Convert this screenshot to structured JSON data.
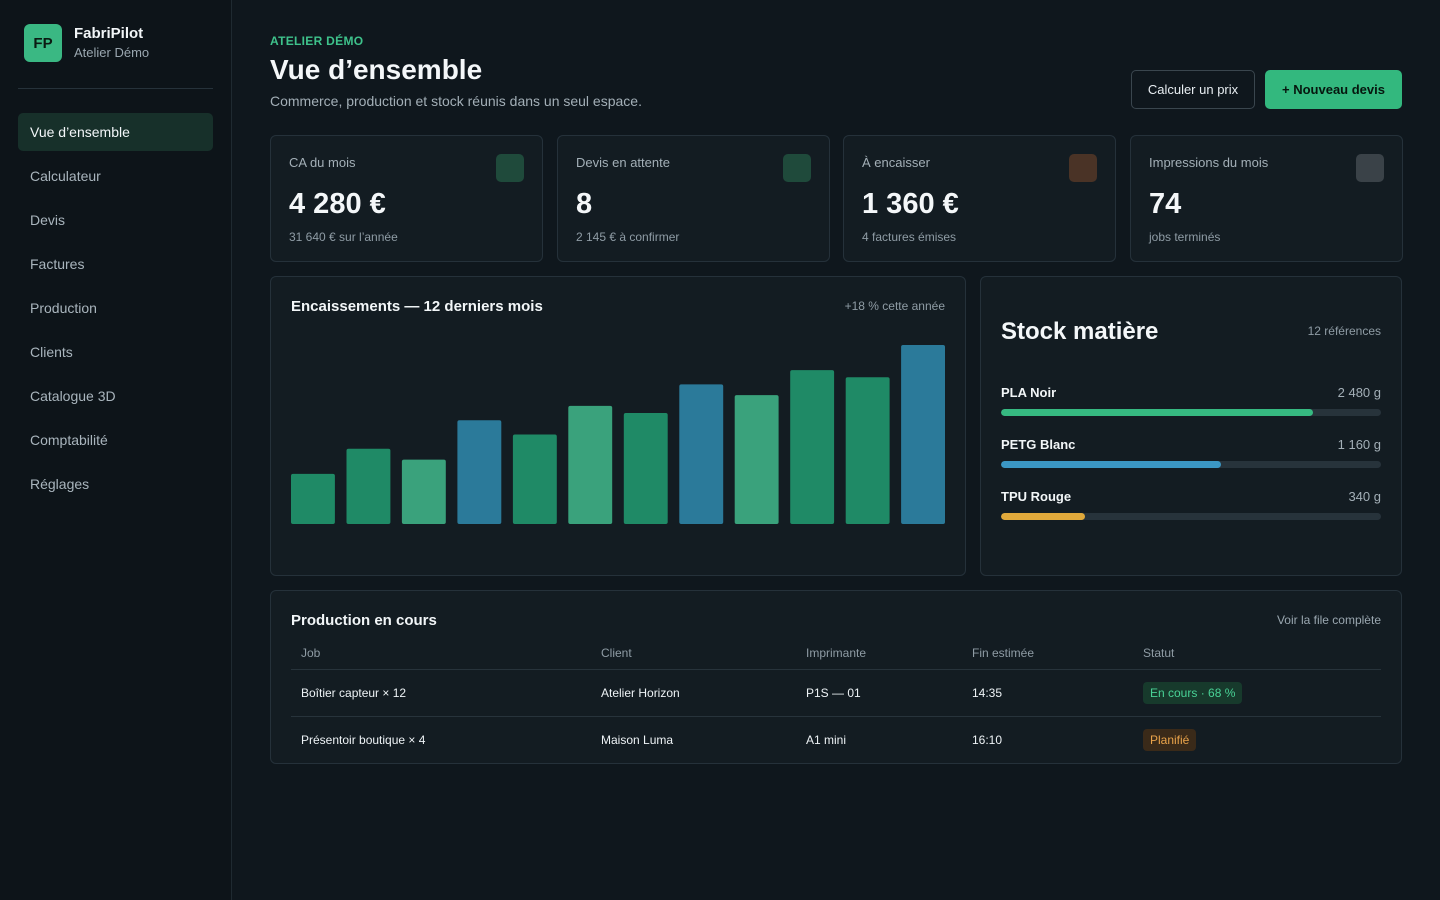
{
  "sidebar": {
    "logo": "FP",
    "app_name": "FabriPilot",
    "workspace": "Atelier Démo",
    "items": [
      {
        "label": "Vue d’ensemble",
        "active": true
      },
      {
        "label": "Calculateur"
      },
      {
        "label": "Devis"
      },
      {
        "label": "Factures"
      },
      {
        "label": "Production"
      },
      {
        "label": "Clients"
      },
      {
        "label": "Catalogue 3D"
      },
      {
        "label": "Comptabilité"
      },
      {
        "label": "Réglages"
      }
    ]
  },
  "header": {
    "eyebrow": "ATELIER DÉMO",
    "title": "Vue d’ensemble",
    "subtitle": "Commerce, production et stock réunis dans un seul espace.",
    "btn_price": "Calculer un prix",
    "btn_quote": "+ Nouveau devis"
  },
  "kpis": [
    {
      "label": "CA du mois",
      "value": "4 280 €",
      "sub": "31 640 € sur l’année",
      "icon_color": "#1f4a3b"
    },
    {
      "label": "Devis en attente",
      "value": "8",
      "sub": "2 145 € à confirmer",
      "icon_color": "#1f4a3b"
    },
    {
      "label": "À encaisser",
      "value": "1 360 €",
      "sub": "4 factures émises",
      "icon_color": "#4a3326"
    },
    {
      "label": "Impressions du mois",
      "value": "74",
      "sub": "jobs terminés",
      "icon_color": "#3a4248"
    }
  ],
  "chart": {
    "title": "Encaissements — 12 derniers mois",
    "note": "+18 % cette année"
  },
  "chart_data": {
    "type": "bar",
    "title": "Encaissements — 12 derniers mois",
    "categories": [
      "",
      "",
      "",
      "",
      "",
      "",
      "",
      "",
      "",
      "",
      "",
      ""
    ],
    "values": [
      28,
      42,
      36,
      58,
      50,
      66,
      62,
      78,
      72,
      86,
      82,
      100
    ],
    "colors": [
      "#1f8a66",
      "#1f8a66",
      "#3aa27c",
      "#2b7a9a",
      "#1f8a66",
      "#3aa27c",
      "#1f8a66",
      "#2b7a9a",
      "#3aa27c",
      "#1f8a66",
      "#1f8a66",
      "#2b7a9a"
    ],
    "ylim": [
      0,
      100
    ],
    "grid": false
  },
  "stock": {
    "title": "Stock matière",
    "count": "12 références",
    "items": [
      {
        "name": "PLA Noir",
        "qty": "2 480 g",
        "level": 0.82,
        "color": "#36b981"
      },
      {
        "name": "PETG Blanc",
        "qty": "1 160 g",
        "level": 0.58,
        "color": "#3b97c4"
      },
      {
        "name": "TPU Rouge",
        "qty": "340 g",
        "level": 0.22,
        "color": "#e0a93b"
      }
    ]
  },
  "production": {
    "title": "Production en cours",
    "link": "Voir la file complète",
    "columns": [
      "Job",
      "Client",
      "Imprimante",
      "Fin estimée",
      "Statut"
    ],
    "rows": [
      {
        "job": "Boîtier capteur × 12",
        "client": "Atelier Horizon",
        "printer": "P1S — 01",
        "eta": "14:35",
        "status": "En cours · 68 %"
      },
      {
        "job": "Présentoir boutique × 4",
        "client": "Maison Luma",
        "printer": "A1 mini",
        "eta": "16:10",
        "status": "Planifié"
      }
    ]
  }
}
